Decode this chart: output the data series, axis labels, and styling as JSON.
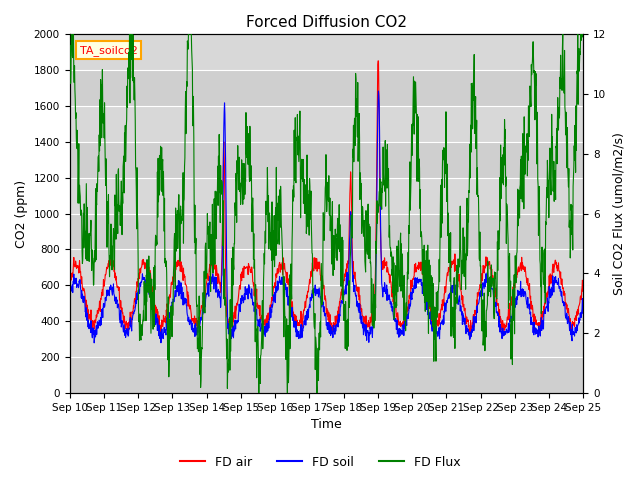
{
  "title": "Forced Diffusion CO2",
  "xlabel": "Time",
  "ylabel_left": "CO2 (ppm)",
  "ylabel_right": "Soil CO2 Flux (umol/m2/s)",
  "ylim_left": [
    0,
    2000
  ],
  "ylim_right": [
    0,
    12
  ],
  "yticks_left": [
    0,
    200,
    400,
    600,
    800,
    1000,
    1200,
    1400,
    1600,
    1800,
    2000
  ],
  "yticks_right": [
    0,
    2,
    4,
    6,
    8,
    10,
    12
  ],
  "xtick_labels": [
    "Sep 10",
    "Sep 11",
    "Sep 12",
    "Sep 13",
    "Sep 14",
    "Sep 15",
    "Sep 16",
    "Sep 17",
    "Sep 18",
    "Sep 19",
    "Sep 20",
    "Sep 21",
    "Sep 22",
    "Sep 23",
    "Sep 24",
    "Sep 25"
  ],
  "legend_label": "TA_soilco2",
  "legend_entries": [
    "FD air",
    "FD soil",
    "FD Flux"
  ],
  "line_colors": [
    "red",
    "blue",
    "green"
  ],
  "bg_color": "#d8d8d8",
  "fig_color": "#ffffff",
  "title_fontsize": 11,
  "label_fontsize": 9,
  "tick_fontsize": 7.5
}
